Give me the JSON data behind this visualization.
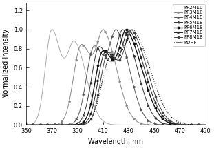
{
  "title": "",
  "xlabel": "Wavelength, nm",
  "ylabel": "Normalized Intensity",
  "xlim": [
    350,
    490
  ],
  "ylim": [
    0,
    1.28
  ],
  "yticks": [
    0,
    0.2,
    0.4,
    0.6,
    0.8,
    1.0,
    1.2
  ],
  "xticks": [
    350,
    370,
    390,
    410,
    430,
    450,
    470,
    490
  ],
  "background_color": "#ffffff",
  "curves": {
    "PF2M10": {
      "peaks": [
        370,
        388
      ],
      "sigmas_l": [
        5,
        6
      ],
      "sigmas_r": [
        7,
        9
      ],
      "amps": [
        1.0,
        0.85
      ],
      "color": "#aaaaaa",
      "lw": 0.7,
      "ls": "-",
      "marker": null
    },
    "PF3M10": {
      "peaks": [
        393,
        411
      ],
      "sigmas_l": [
        6,
        6
      ],
      "sigmas_r": [
        8,
        10
      ],
      "amps": [
        0.9,
        1.0
      ],
      "color": "#888888",
      "lw": 0.7,
      "ls": "-",
      "marker": ">"
    },
    "PF4M18": {
      "peaks": [
        403,
        421
      ],
      "sigmas_l": [
        6,
        6
      ],
      "sigmas_r": [
        8,
        10
      ],
      "amps": [
        0.88,
        1.0
      ],
      "color": "#555555",
      "lw": 0.7,
      "ls": "-",
      "marker": ">"
    },
    "PF5M18": {
      "peaks": [
        407,
        426
      ],
      "sigmas_l": [
        6,
        6
      ],
      "sigmas_r": [
        8,
        11
      ],
      "amps": [
        0.86,
        1.0
      ],
      "color": "#333333",
      "lw": 0.7,
      "ls": "-",
      "marker": "^"
    },
    "PF6M18": {
      "peaks": [
        410,
        429
      ],
      "sigmas_l": [
        6,
        6
      ],
      "sigmas_r": [
        9,
        12
      ],
      "amps": [
        0.85,
        1.0
      ],
      "color": "#111111",
      "lw": 1.0,
      "ls": "-",
      "marker": "o"
    },
    "PF7M18": {
      "peaks": [
        412,
        431
      ],
      "sigmas_l": [
        6,
        6
      ],
      "sigmas_r": [
        9,
        12
      ],
      "amps": [
        0.84,
        1.0
      ],
      "color": "#222222",
      "lw": 0.7,
      "ls": "-",
      "marker": ">"
    },
    "PF8M18": {
      "peaks": [
        414,
        433
      ],
      "sigmas_l": [
        6,
        6
      ],
      "sigmas_r": [
        9,
        12
      ],
      "amps": [
        0.83,
        1.0
      ],
      "color": "#444444",
      "lw": 0.7,
      "ls": "-",
      "marker": "s"
    },
    "PDHF": {
      "peaks": [
        416,
        435
      ],
      "sigmas_l": [
        7,
        7
      ],
      "sigmas_r": [
        10,
        13
      ],
      "amps": [
        0.82,
        1.0
      ],
      "color": "#000000",
      "lw": 0.8,
      "ls": ":",
      "marker": null
    }
  },
  "legend_order": [
    "PF2M10",
    "PF3M10",
    "PF4M18",
    "PF5M18",
    "PF6M18",
    "PF7M18",
    "PF8M18",
    "PDHF"
  ]
}
